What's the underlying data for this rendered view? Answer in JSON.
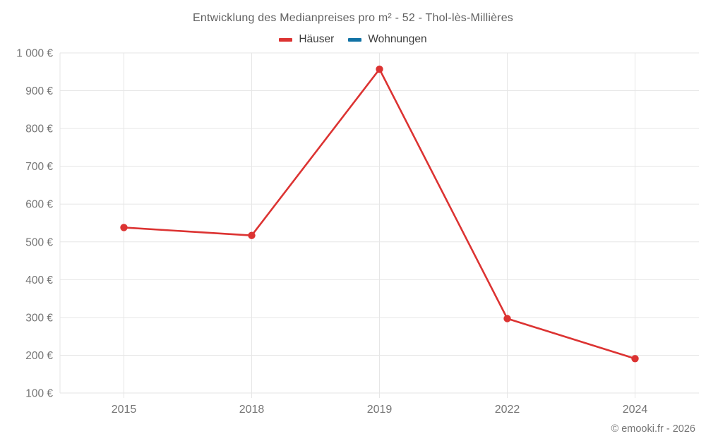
{
  "footer": {
    "copyright": "© emooki.fr - 2026"
  },
  "chart_data": {
    "type": "line",
    "title": "Entwicklung des Medianpreises pro m² - 52 - Thol-lès-Millières",
    "categories": [
      "2015",
      "2018",
      "2019",
      "2022",
      "2024"
    ],
    "series": [
      {
        "name": "Häuser",
        "color": "#dc3332",
        "values": [
          538,
          517,
          957,
          297,
          191
        ]
      },
      {
        "name": "Wohnungen",
        "color": "#1172a5",
        "values": []
      }
    ],
    "xlabel": "",
    "ylabel": "",
    "ylim": [
      100,
      1000
    ],
    "yticks": [
      {
        "value": 100,
        "label": "100 €"
      },
      {
        "value": 200,
        "label": "200 €"
      },
      {
        "value": 300,
        "label": "300 €"
      },
      {
        "value": 400,
        "label": "400 €"
      },
      {
        "value": 500,
        "label": "500 €"
      },
      {
        "value": 600,
        "label": "600 €"
      },
      {
        "value": 700,
        "label": "700 €"
      },
      {
        "value": 800,
        "label": "800 €"
      },
      {
        "value": 900,
        "label": "900 €"
      },
      {
        "value": 1000,
        "label": "1 000 €"
      }
    ],
    "grid_on": true,
    "legend_position": "top",
    "grid_color": "#e6e6e6",
    "axis_text_color": "#757575"
  }
}
